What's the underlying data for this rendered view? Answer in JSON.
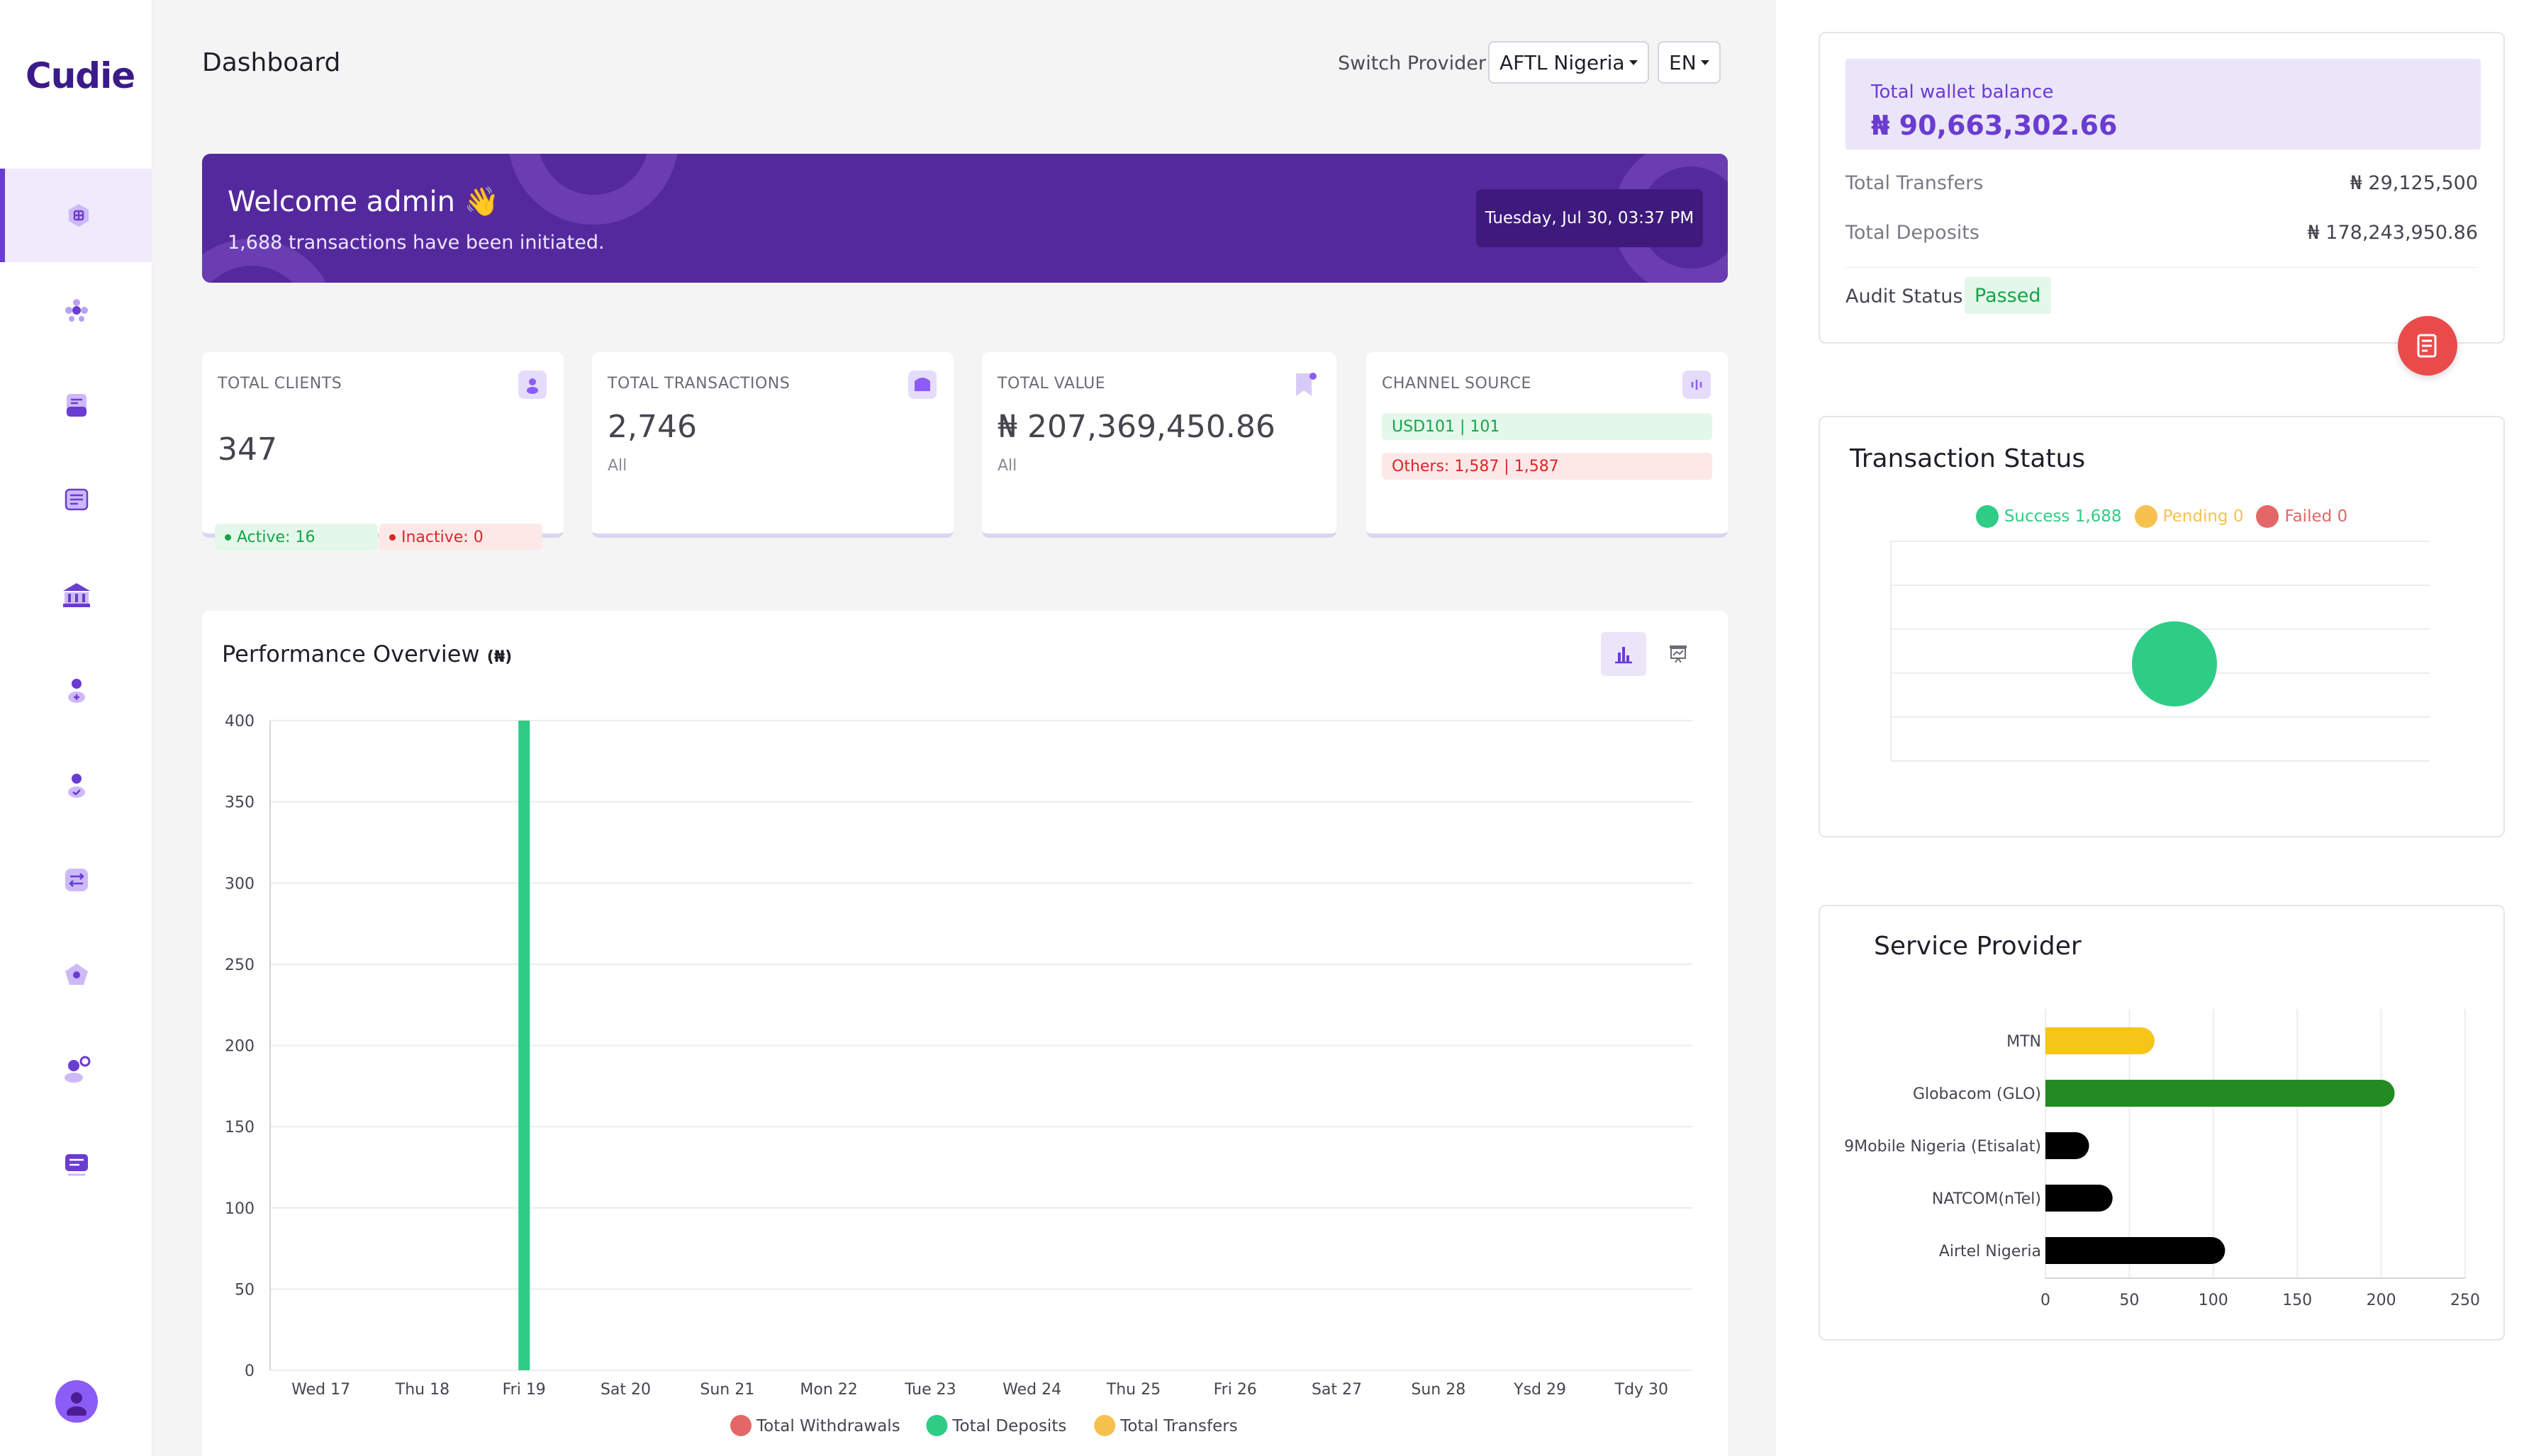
{
  "brand": {
    "name": "Cudie"
  },
  "header": {
    "title": "Dashboard",
    "switch_label": "Switch Provider",
    "provider": "AFTL Nigeria",
    "language": "EN"
  },
  "sidebar": {
    "items": [
      {
        "name": "dashboard",
        "icon": "dashboard-icon",
        "active": true
      },
      {
        "name": "clients",
        "icon": "people-icon"
      },
      {
        "name": "documents",
        "icon": "document-icon"
      },
      {
        "name": "reports",
        "icon": "report-icon"
      },
      {
        "name": "bank",
        "icon": "bank-icon"
      },
      {
        "name": "user-add",
        "icon": "user-add-icon"
      },
      {
        "name": "user-verify",
        "icon": "user-check-icon"
      },
      {
        "name": "transfers",
        "icon": "transfer-icon"
      },
      {
        "name": "wallet",
        "icon": "wallet-icon"
      },
      {
        "name": "user-settings",
        "icon": "user-settings-icon"
      },
      {
        "name": "messages",
        "icon": "message-icon"
      }
    ]
  },
  "banner": {
    "title": "Welcome admin 👋",
    "subtitle": "1,688 transactions have been initiated.",
    "date": "Tuesday, Jul 30, 03:37 PM"
  },
  "stats": {
    "clients": {
      "label": "TOTAL CLIENTS",
      "value": "347",
      "active": "Active: 16",
      "inactive": "Inactive: 0"
    },
    "transactions": {
      "label": "TOTAL TRANSACTIONS",
      "value": "2,746",
      "sub": "All"
    },
    "value": {
      "label": "TOTAL VALUE",
      "value": "₦ 207,369,450.86",
      "sub": "All"
    },
    "channel": {
      "label": "CHANNEL SOURCE",
      "usd": "USD101 | 101",
      "others": "Others: 1,587 | 1,587"
    }
  },
  "performance": {
    "title": "Performance Overview",
    "currency": "(₦)"
  },
  "wallet": {
    "balance_label": "Total wallet balance",
    "balance_value": "₦ 90,663,302.66",
    "transfers_label": "Total Transfers",
    "transfers_value": "₦ 29,125,500",
    "deposits_label": "Total Deposits",
    "deposits_value": "₦ 178,243,950.86",
    "audit_label": "Audit Status",
    "audit_value": "Passed"
  },
  "status_panel": {
    "title": "Transaction Status"
  },
  "provider_panel": {
    "title": "Service Provider"
  },
  "colors": {
    "accent": "#6a3cd1",
    "banner": "#55299e",
    "success": "#2ecc85",
    "pending": "#f6c14f",
    "failed": "#e46767"
  },
  "chart_data": [
    {
      "type": "bar",
      "title": "Performance Overview",
      "categories": [
        "Wed 17",
        "Thu 18",
        "Fri 19",
        "Sat 20",
        "Sun 21",
        "Mon 22",
        "Tue 23",
        "Wed 24",
        "Thu 25",
        "Fri 26",
        "Sat 27",
        "Sun 28",
        "Ysd 29",
        "Tdy 30"
      ],
      "series": [
        {
          "name": "Total Withdrawals",
          "color": "#e46767",
          "values": [
            0,
            0,
            0,
            0,
            0,
            0,
            0,
            0,
            0,
            0,
            0,
            0,
            0,
            0
          ]
        },
        {
          "name": "Total Deposits",
          "color": "#2ecc85",
          "values": [
            0,
            0,
            400,
            0,
            0,
            0,
            0,
            0,
            0,
            0,
            0,
            0,
            0,
            0
          ]
        },
        {
          "name": "Total Transfers",
          "color": "#f6c14f",
          "values": [
            0,
            0,
            0,
            0,
            0,
            0,
            0,
            0,
            0,
            0,
            0,
            0,
            0,
            0
          ]
        }
      ],
      "yticks": [
        0,
        50,
        100,
        150,
        200,
        250,
        300,
        350,
        400
      ],
      "ylim": [
        0,
        400
      ],
      "grid": true,
      "legend": "bottom"
    },
    {
      "type": "scatter",
      "title": "Transaction Status",
      "series": [
        {
          "name": "Success",
          "count": "1,688",
          "value": 1688,
          "color": "#2ecc85"
        },
        {
          "name": "Pending",
          "count": "0",
          "value": 0,
          "color": "#f6c14f"
        },
        {
          "name": "Failed",
          "count": "0",
          "value": 0,
          "color": "#e46767"
        }
      ],
      "grid": true,
      "legend": "top"
    },
    {
      "type": "bar",
      "orientation": "horizontal",
      "title": "Service Provider",
      "categories": [
        "MTN",
        "Globacom (GLO)",
        "9Mobile Nigeria (Etisalat)",
        "NATCOM(nTel)",
        "Airtel Nigeria"
      ],
      "values": [
        65,
        208,
        26,
        40,
        107
      ],
      "colors": [
        "#f5c518",
        "#228b22",
        "#000000",
        "#000000",
        "#000000"
      ],
      "xticks": [
        0,
        50,
        100,
        150,
        200,
        250
      ],
      "xlim": [
        0,
        250
      ],
      "grid": true
    }
  ]
}
